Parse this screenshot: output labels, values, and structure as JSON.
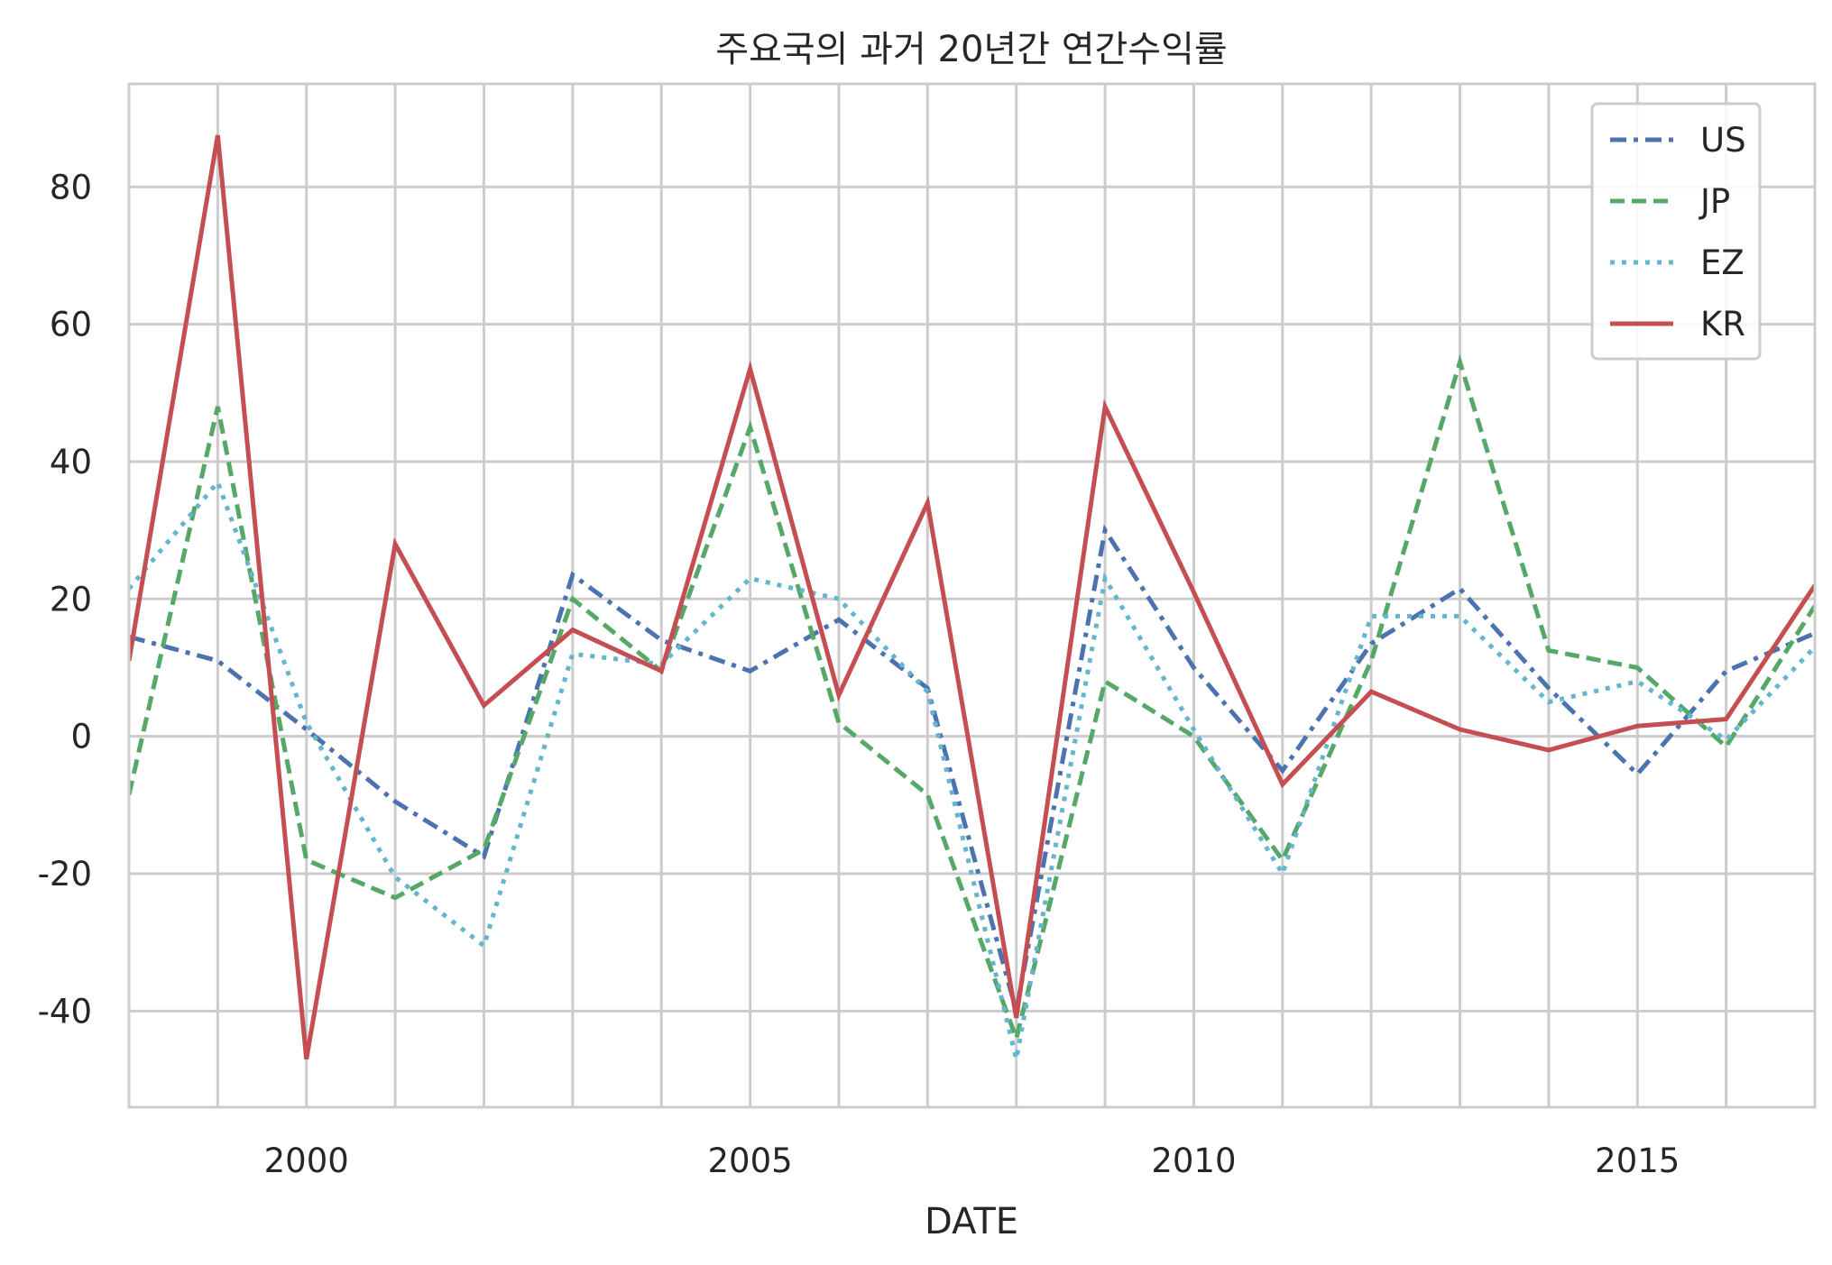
{
  "chart_data": {
    "type": "line",
    "title": "주요국의 과거 20년간 연간수익률",
    "xlabel": "DATE",
    "ylabel": "",
    "x": [
      1998,
      1999,
      2000,
      2001,
      2002,
      2003,
      2004,
      2005,
      2006,
      2007,
      2008,
      2009,
      2010,
      2011,
      2012,
      2013,
      2014,
      2015,
      2016,
      2017
    ],
    "xlim": [
      1998,
      2017
    ],
    "ylim": [
      -54,
      95
    ],
    "xticks": [
      2000,
      2005,
      2010,
      2015
    ],
    "yticks": [
      -40,
      -20,
      0,
      20,
      40,
      60,
      80
    ],
    "x_tick_labels": [
      "2000",
      "2005",
      "2010",
      "2015"
    ],
    "y_tick_labels": [
      "-40",
      "-20",
      "0",
      "20",
      "40",
      "60",
      "80"
    ],
    "grid": true,
    "legend_position": "top-right",
    "series": [
      {
        "name": "US",
        "color": "#4C72B0",
        "style": "dashdot",
        "values": [
          14.5,
          11,
          1,
          -9.5,
          -17.5,
          23.5,
          14,
          9.5,
          17,
          7,
          -40,
          30,
          10,
          -5,
          13.5,
          21.5,
          7,
          -5.5,
          9.5,
          15
        ]
      },
      {
        "name": "JP",
        "color": "#55A868",
        "style": "dashed",
        "values": [
          -8.5,
          48,
          -18,
          -23.5,
          -16.5,
          20,
          9.5,
          45,
          2,
          -8.5,
          -44,
          8,
          0,
          -18,
          11,
          54.5,
          12.5,
          10,
          -1.5,
          19
        ]
      },
      {
        "name": "EZ",
        "color": "#64B5CD",
        "style": "dotted",
        "values": [
          21.5,
          37,
          2,
          -20.5,
          -30.5,
          12,
          10.5,
          23,
          20,
          6.5,
          -47,
          23,
          1,
          -20,
          17.5,
          17.5,
          5,
          8,
          -0.5,
          13
        ]
      },
      {
        "name": "KR",
        "color": "#C44E52",
        "style": "solid",
        "values": [
          11,
          87.5,
          -47,
          28,
          4.5,
          15.5,
          9.5,
          53.5,
          6,
          34,
          -41,
          48,
          21,
          -7,
          6.5,
          1,
          -2,
          1.5,
          2.5,
          22
        ]
      }
    ]
  }
}
